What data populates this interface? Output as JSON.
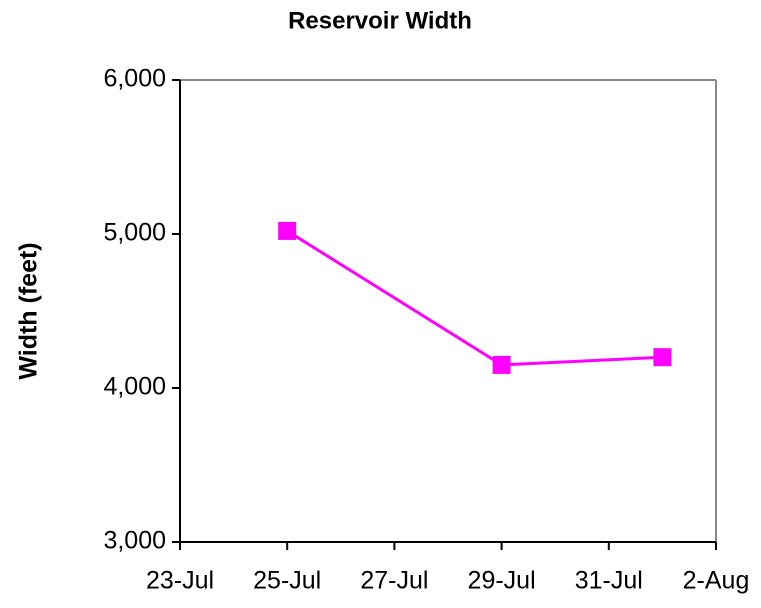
{
  "chart_data": {
    "type": "line",
    "title": "Reservoir Width",
    "y_label": "Width (feet)",
    "x": [
      "25-Jul",
      "29-Jul",
      "1-Aug"
    ],
    "series": [
      {
        "name": "Width",
        "color": "#ff00ff",
        "values": [
          5020,
          4150,
          4200
        ]
      }
    ],
    "xlim": [
      "23-Jul",
      "2-Aug"
    ],
    "xticks": [
      "23-Jul",
      "25-Jul",
      "27-Jul",
      "29-Jul",
      "31-Jul",
      "2-Aug"
    ],
    "ylim": [
      3000,
      6000
    ],
    "yticks": [
      {
        "value": 3000,
        "label": "3,000"
      },
      {
        "value": 4000,
        "label": "4,000"
      },
      {
        "value": 5000,
        "label": "5,000"
      },
      {
        "value": 6000,
        "label": "6,000"
      }
    ],
    "grid": false
  }
}
